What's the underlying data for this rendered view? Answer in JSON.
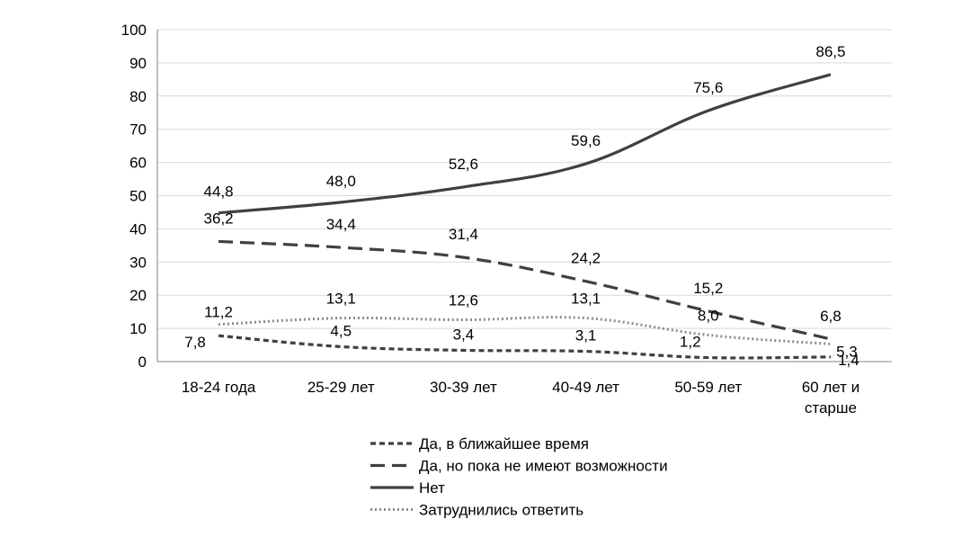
{
  "chart_data": {
    "type": "line",
    "title": "",
    "xlabel": "",
    "ylabel": "",
    "ylim": [
      0,
      100
    ],
    "yticks": [
      0,
      10,
      20,
      30,
      40,
      50,
      60,
      70,
      80,
      90,
      100
    ],
    "grid": true,
    "legend_position": "bottom",
    "categories": [
      [
        "18-24 года"
      ],
      [
        "25-29 лет"
      ],
      [
        "30-39 лет"
      ],
      [
        "40-49 лет"
      ],
      [
        "50-59 лет"
      ],
      [
        "60 лет и",
        "старше"
      ]
    ],
    "series": [
      {
        "name": "Да, в ближайшее время",
        "style": "short-dash",
        "color": "#404040",
        "values": [
          7.8,
          4.5,
          3.4,
          3.1,
          1.2,
          1.4
        ],
        "labels": [
          "7,8",
          "4,5",
          "3,4",
          "3,1",
          "1,2",
          "1,4"
        ]
      },
      {
        "name": "Да, но пока не имеют возможности",
        "style": "long-dash",
        "color": "#404040",
        "values": [
          36.2,
          34.4,
          31.4,
          24.2,
          15.2,
          6.8
        ],
        "labels": [
          "36,2",
          "34,4",
          "31,4",
          "24,2",
          "15,2",
          "6,8"
        ]
      },
      {
        "name": "Нет",
        "style": "solid",
        "color": "#404040",
        "values": [
          44.8,
          48.0,
          52.6,
          59.6,
          75.6,
          86.5
        ],
        "labels": [
          "44,8",
          "48,0",
          "52,6",
          "59,6",
          "75,6",
          "86,5"
        ]
      },
      {
        "name": "Затруднились ответить",
        "style": "dotted",
        "color": "#8c8c8c",
        "values": [
          11.2,
          13.1,
          12.6,
          13.1,
          8.0,
          5.3
        ],
        "labels": [
          "11,2",
          "13,1",
          "12,6",
          "13,1",
          "8,0",
          "5,3"
        ]
      }
    ]
  }
}
